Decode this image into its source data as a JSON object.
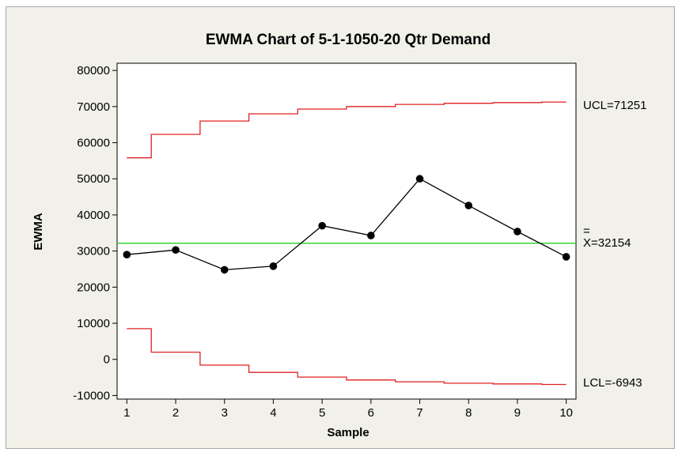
{
  "chart_data": {
    "type": "line",
    "title": "EWMA Chart of 5-1-1050-20 Qtr Demand",
    "xlabel": "Sample",
    "ylabel": "EWMA",
    "x": [
      1,
      2,
      3,
      4,
      5,
      6,
      7,
      8,
      9,
      10
    ],
    "xlim": [
      0.8,
      10.2
    ],
    "ylim": [
      -11000,
      82000
    ],
    "yticks": [
      -10000,
      0,
      10000,
      20000,
      30000,
      40000,
      50000,
      60000,
      70000,
      80000
    ],
    "ytick_labels": [
      "-10000",
      "0",
      "10000",
      "20000",
      "30000",
      "40000",
      "50000",
      "60000",
      "70000",
      "80000"
    ],
    "xtick_labels": [
      "1",
      "2",
      "3",
      "4",
      "5",
      "6",
      "7",
      "8",
      "9",
      "10"
    ],
    "series": [
      {
        "name": "EWMA",
        "values": [
          29000,
          30300,
          24800,
          25800,
          37000,
          34300,
          50000,
          42600,
          35400,
          28400
        ],
        "color": "#000000",
        "markers": true
      },
      {
        "name": "UCL",
        "values": [
          55800,
          62300,
          66000,
          68000,
          69300,
          70000,
          70600,
          70900,
          71100,
          71251
        ],
        "color": "#e02020",
        "step": true
      },
      {
        "name": "LCL",
        "values": [
          8500,
          2000,
          -1600,
          -3600,
          -4900,
          -5700,
          -6200,
          -6600,
          -6800,
          -6943
        ],
        "color": "#e02020",
        "step": true
      }
    ],
    "center_line": {
      "value": 32154,
      "color": "#20d020"
    },
    "limit_labels": {
      "ucl": "UCL=71251",
      "center_bar": "=",
      "center": "X=32154",
      "lcl": "LCL=-6943"
    },
    "grid": false,
    "colors": {
      "panel_background": "#f1f1e9",
      "plot_background": "#ffffff"
    }
  }
}
